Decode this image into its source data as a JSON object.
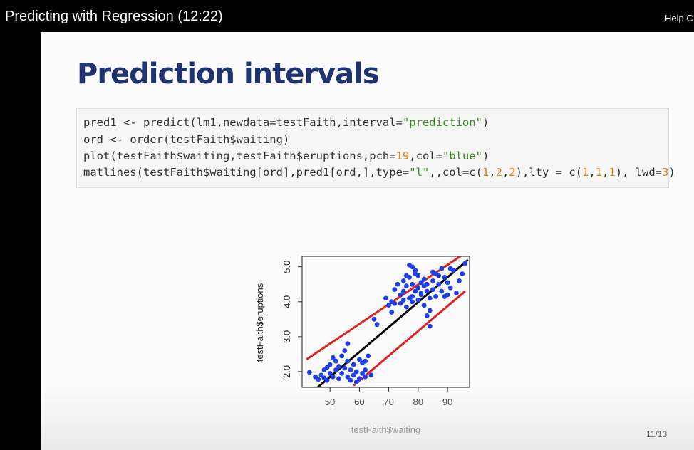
{
  "video": {
    "title": "Predicting with Regression (12:22)",
    "help_label": "Help C"
  },
  "slide": {
    "title": "Prediction intervals",
    "page_indicator": "11/13",
    "code": [
      [
        {
          "t": "pred1 <- predict(lm1,newdata=testFaith,interval="
        },
        {
          "t": "\"prediction\"",
          "c": "str"
        },
        {
          "t": ")"
        }
      ],
      [
        {
          "t": "ord <- order(testFaith$waiting)"
        }
      ],
      [
        {
          "t": "plot(testFaith$waiting,testFaith$eruptions,pch="
        },
        {
          "t": "19",
          "c": "num"
        },
        {
          "t": ",col="
        },
        {
          "t": "\"blue\"",
          "c": "str"
        },
        {
          "t": ")"
        }
      ],
      [
        {
          "t": "matlines(testFaith$waiting[ord],pred1[ord,],type="
        },
        {
          "t": "\"l\"",
          "c": "str"
        },
        {
          "t": ",,col=c("
        },
        {
          "t": "1",
          "c": "num"
        },
        {
          "t": ","
        },
        {
          "t": "2",
          "c": "num"
        },
        {
          "t": ","
        },
        {
          "t": "2",
          "c": "num"
        },
        {
          "t": "),lty = c("
        },
        {
          "t": "1",
          "c": "num"
        },
        {
          "t": ","
        },
        {
          "t": "1",
          "c": "num"
        },
        {
          "t": ","
        },
        {
          "t": "1",
          "c": "num"
        },
        {
          "t": "), lwd="
        },
        {
          "t": "3",
          "c": "num"
        },
        {
          "t": ")"
        }
      ]
    ]
  },
  "chart_data": {
    "type": "scatter",
    "xlabel": "testFaith$waiting",
    "ylabel": "testFaith$eruptions",
    "xlim": [
      40.5,
      97.5
    ],
    "ylim": [
      1.55,
      5.3
    ],
    "xticks": [
      50,
      60,
      70,
      80,
      90
    ],
    "yticks": [
      2.0,
      3.0,
      4.0,
      5.0
    ],
    "ytick_labels": [
      "2.0",
      "3.0",
      "4.0",
      "5.0"
    ],
    "point_color": "#1f3fe6",
    "points": [
      [
        43,
        1.98
      ],
      [
        45,
        1.85
      ],
      [
        46,
        1.78
      ],
      [
        47,
        1.9
      ],
      [
        48,
        1.82
      ],
      [
        48,
        2.05
      ],
      [
        49,
        1.75
      ],
      [
        49,
        2.12
      ],
      [
        50,
        1.95
      ],
      [
        50,
        2.2
      ],
      [
        51,
        1.85
      ],
      [
        51,
        2.4
      ],
      [
        52,
        2.05
      ],
      [
        52,
        2.3
      ],
      [
        53,
        1.8
      ],
      [
        53,
        2.15
      ],
      [
        54,
        2.45
      ],
      [
        54,
        1.95
      ],
      [
        55,
        2.1
      ],
      [
        55,
        2.6
      ],
      [
        56,
        1.85
      ],
      [
        56,
        2.3
      ],
      [
        57,
        2.05
      ],
      [
        57,
        1.75
      ],
      [
        58,
        2.2
      ],
      [
        58,
        1.9
      ],
      [
        59,
        1.7
      ],
      [
        59,
        2.0
      ],
      [
        60,
        2.35
      ],
      [
        60,
        1.8
      ],
      [
        61,
        1.95
      ],
      [
        61,
        2.25
      ],
      [
        62,
        1.85
      ],
      [
        62,
        2.3
      ],
      [
        63,
        2.45
      ],
      [
        64,
        1.9
      ],
      [
        56,
        2.8
      ],
      [
        65,
        3.5
      ],
      [
        66,
        3.35
      ],
      [
        62,
        2.05
      ],
      [
        69,
        4.1
      ],
      [
        70,
        3.9
      ],
      [
        71,
        4.0
      ],
      [
        71,
        3.7
      ],
      [
        72,
        4.35
      ],
      [
        73,
        4.5
      ],
      [
        74,
        4.2
      ],
      [
        74,
        3.95
      ],
      [
        75,
        4.6
      ],
      [
        75,
        4.3
      ],
      [
        76,
        4.45
      ],
      [
        76,
        3.85
      ],
      [
        77,
        4.1
      ],
      [
        77,
        4.7
      ],
      [
        78,
        4.5
      ],
      [
        78,
        4.0
      ],
      [
        79,
        4.3
      ],
      [
        79,
        4.8
      ],
      [
        80,
        4.4
      ],
      [
        80,
        4.05
      ],
      [
        81,
        4.55
      ],
      [
        81,
        4.2
      ],
      [
        82,
        4.65
      ],
      [
        82,
        3.9
      ],
      [
        83,
        4.3
      ],
      [
        83,
        4.5
      ],
      [
        84,
        3.75
      ],
      [
        84,
        4.1
      ],
      [
        85,
        4.6
      ],
      [
        85,
        4.35
      ],
      [
        86,
        4.15
      ],
      [
        86,
        4.8
      ],
      [
        87,
        4.5
      ],
      [
        88,
        4.95
      ],
      [
        88,
        4.3
      ],
      [
        89,
        4.7
      ],
      [
        90,
        4.2
      ],
      [
        90,
        4.55
      ],
      [
        91,
        4.4
      ],
      [
        92,
        4.9
      ],
      [
        93,
        4.25
      ],
      [
        94,
        4.6
      ],
      [
        95,
        4.8
      ],
      [
        96,
        5.1
      ],
      [
        77,
        5.05
      ],
      [
        78,
        5.0
      ],
      [
        76,
        4.75
      ],
      [
        79,
        4.9
      ],
      [
        83,
        3.6
      ],
      [
        84,
        3.3
      ],
      [
        80,
        4.75
      ],
      [
        82,
        4.45
      ],
      [
        85,
        4.85
      ],
      [
        87,
        4.75
      ],
      [
        89,
        4.15
      ],
      [
        91,
        4.95
      ],
      [
        75,
        4.05
      ],
      [
        78,
        4.15
      ],
      [
        81,
        4.25
      ],
      [
        72,
        3.95
      ]
    ],
    "series": [
      {
        "type": "line",
        "color": "#000000",
        "x": [
          43,
          97
        ],
        "y": [
          1.35,
          5.2
        ]
      },
      {
        "type": "line",
        "color": "#e02020",
        "x": [
          42,
          97
        ],
        "y": [
          2.35,
          5.45
        ]
      },
      {
        "type": "line",
        "color": "#e02020",
        "x": [
          58,
          96
        ],
        "y": [
          1.6,
          4.3
        ]
      }
    ]
  }
}
